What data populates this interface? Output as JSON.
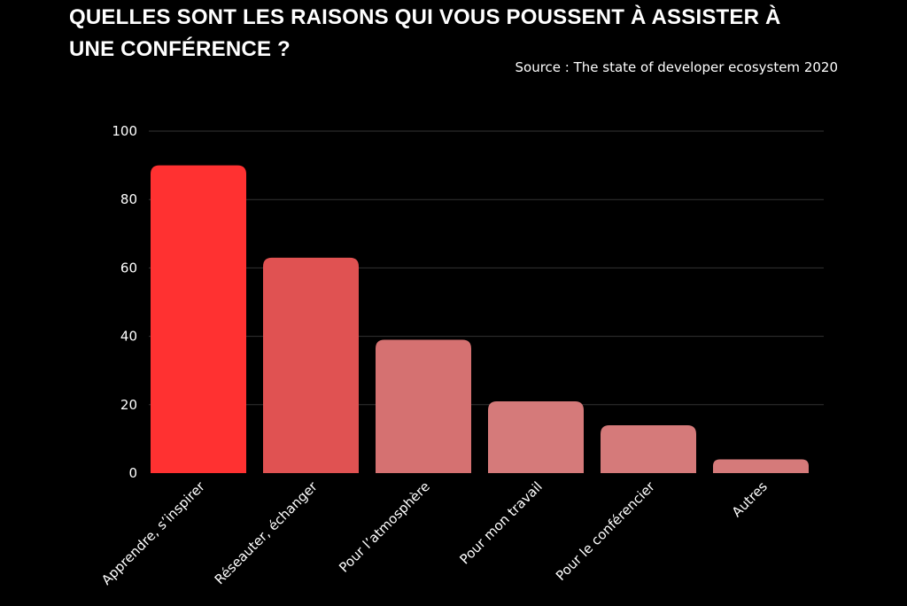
{
  "chart_data": {
    "type": "bar",
    "title": "QUELLES SONT LES RAISONS QUI VOUS POUSSENT À ASSISTER À UNE CONFÉRENCE ?",
    "subtitle": "Source : The state of developer ecosystem 2020",
    "xlabel": "",
    "ylabel": "",
    "categories": [
      "Apprendre, s’inspirer",
      "Réseauter, échanger",
      "Pour l’atmosphère",
      "Pour mon travail",
      "Pour le conférencier",
      "Autres"
    ],
    "values": [
      90,
      63,
      39,
      21,
      14,
      4
    ],
    "colors": [
      "#ff3131",
      "#e05252",
      "#d57171",
      "#d57a7a",
      "#d57a7a",
      "#d57a7a"
    ],
    "ylim": [
      0,
      100
    ],
    "yticks": [
      0,
      20,
      40,
      60,
      80,
      100
    ],
    "grid": true,
    "background": "#000000",
    "legend": "none"
  }
}
